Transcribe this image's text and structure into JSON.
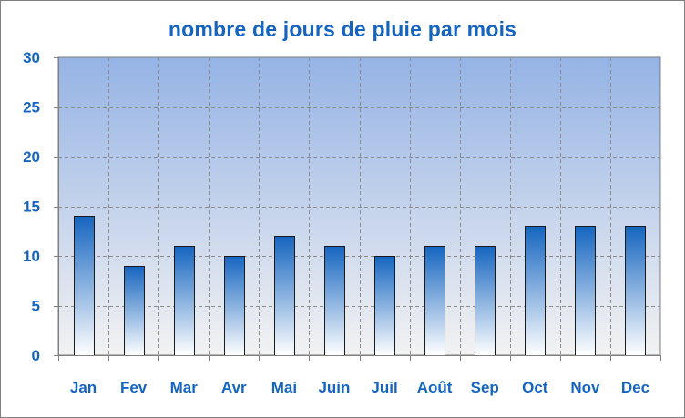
{
  "chart_data": {
    "type": "bar",
    "title": "nombre de jours de pluie par mois",
    "xlabel": "",
    "ylabel": "",
    "categories": [
      "Jan",
      "Fev",
      "Mar",
      "Avr",
      "Mai",
      "Juin",
      "Juil",
      "Août",
      "Sep",
      "Oct",
      "Nov",
      "Dec"
    ],
    "values": [
      14,
      9,
      11,
      10,
      12,
      11,
      10,
      11,
      11,
      13,
      13,
      13
    ],
    "ylim": [
      0,
      30
    ],
    "yticks": [
      0,
      5,
      10,
      15,
      20,
      25,
      30
    ],
    "grid": true,
    "legend": "none",
    "colors": {
      "title": "#1565c0",
      "tick_labels": "#1565c0",
      "bar_top": "#1565c0",
      "bar_bottom": "#ffffff",
      "plot_top": "#95b3e5",
      "plot_bottom": "#f2f2f2",
      "grid": "#8c8c8c"
    }
  }
}
